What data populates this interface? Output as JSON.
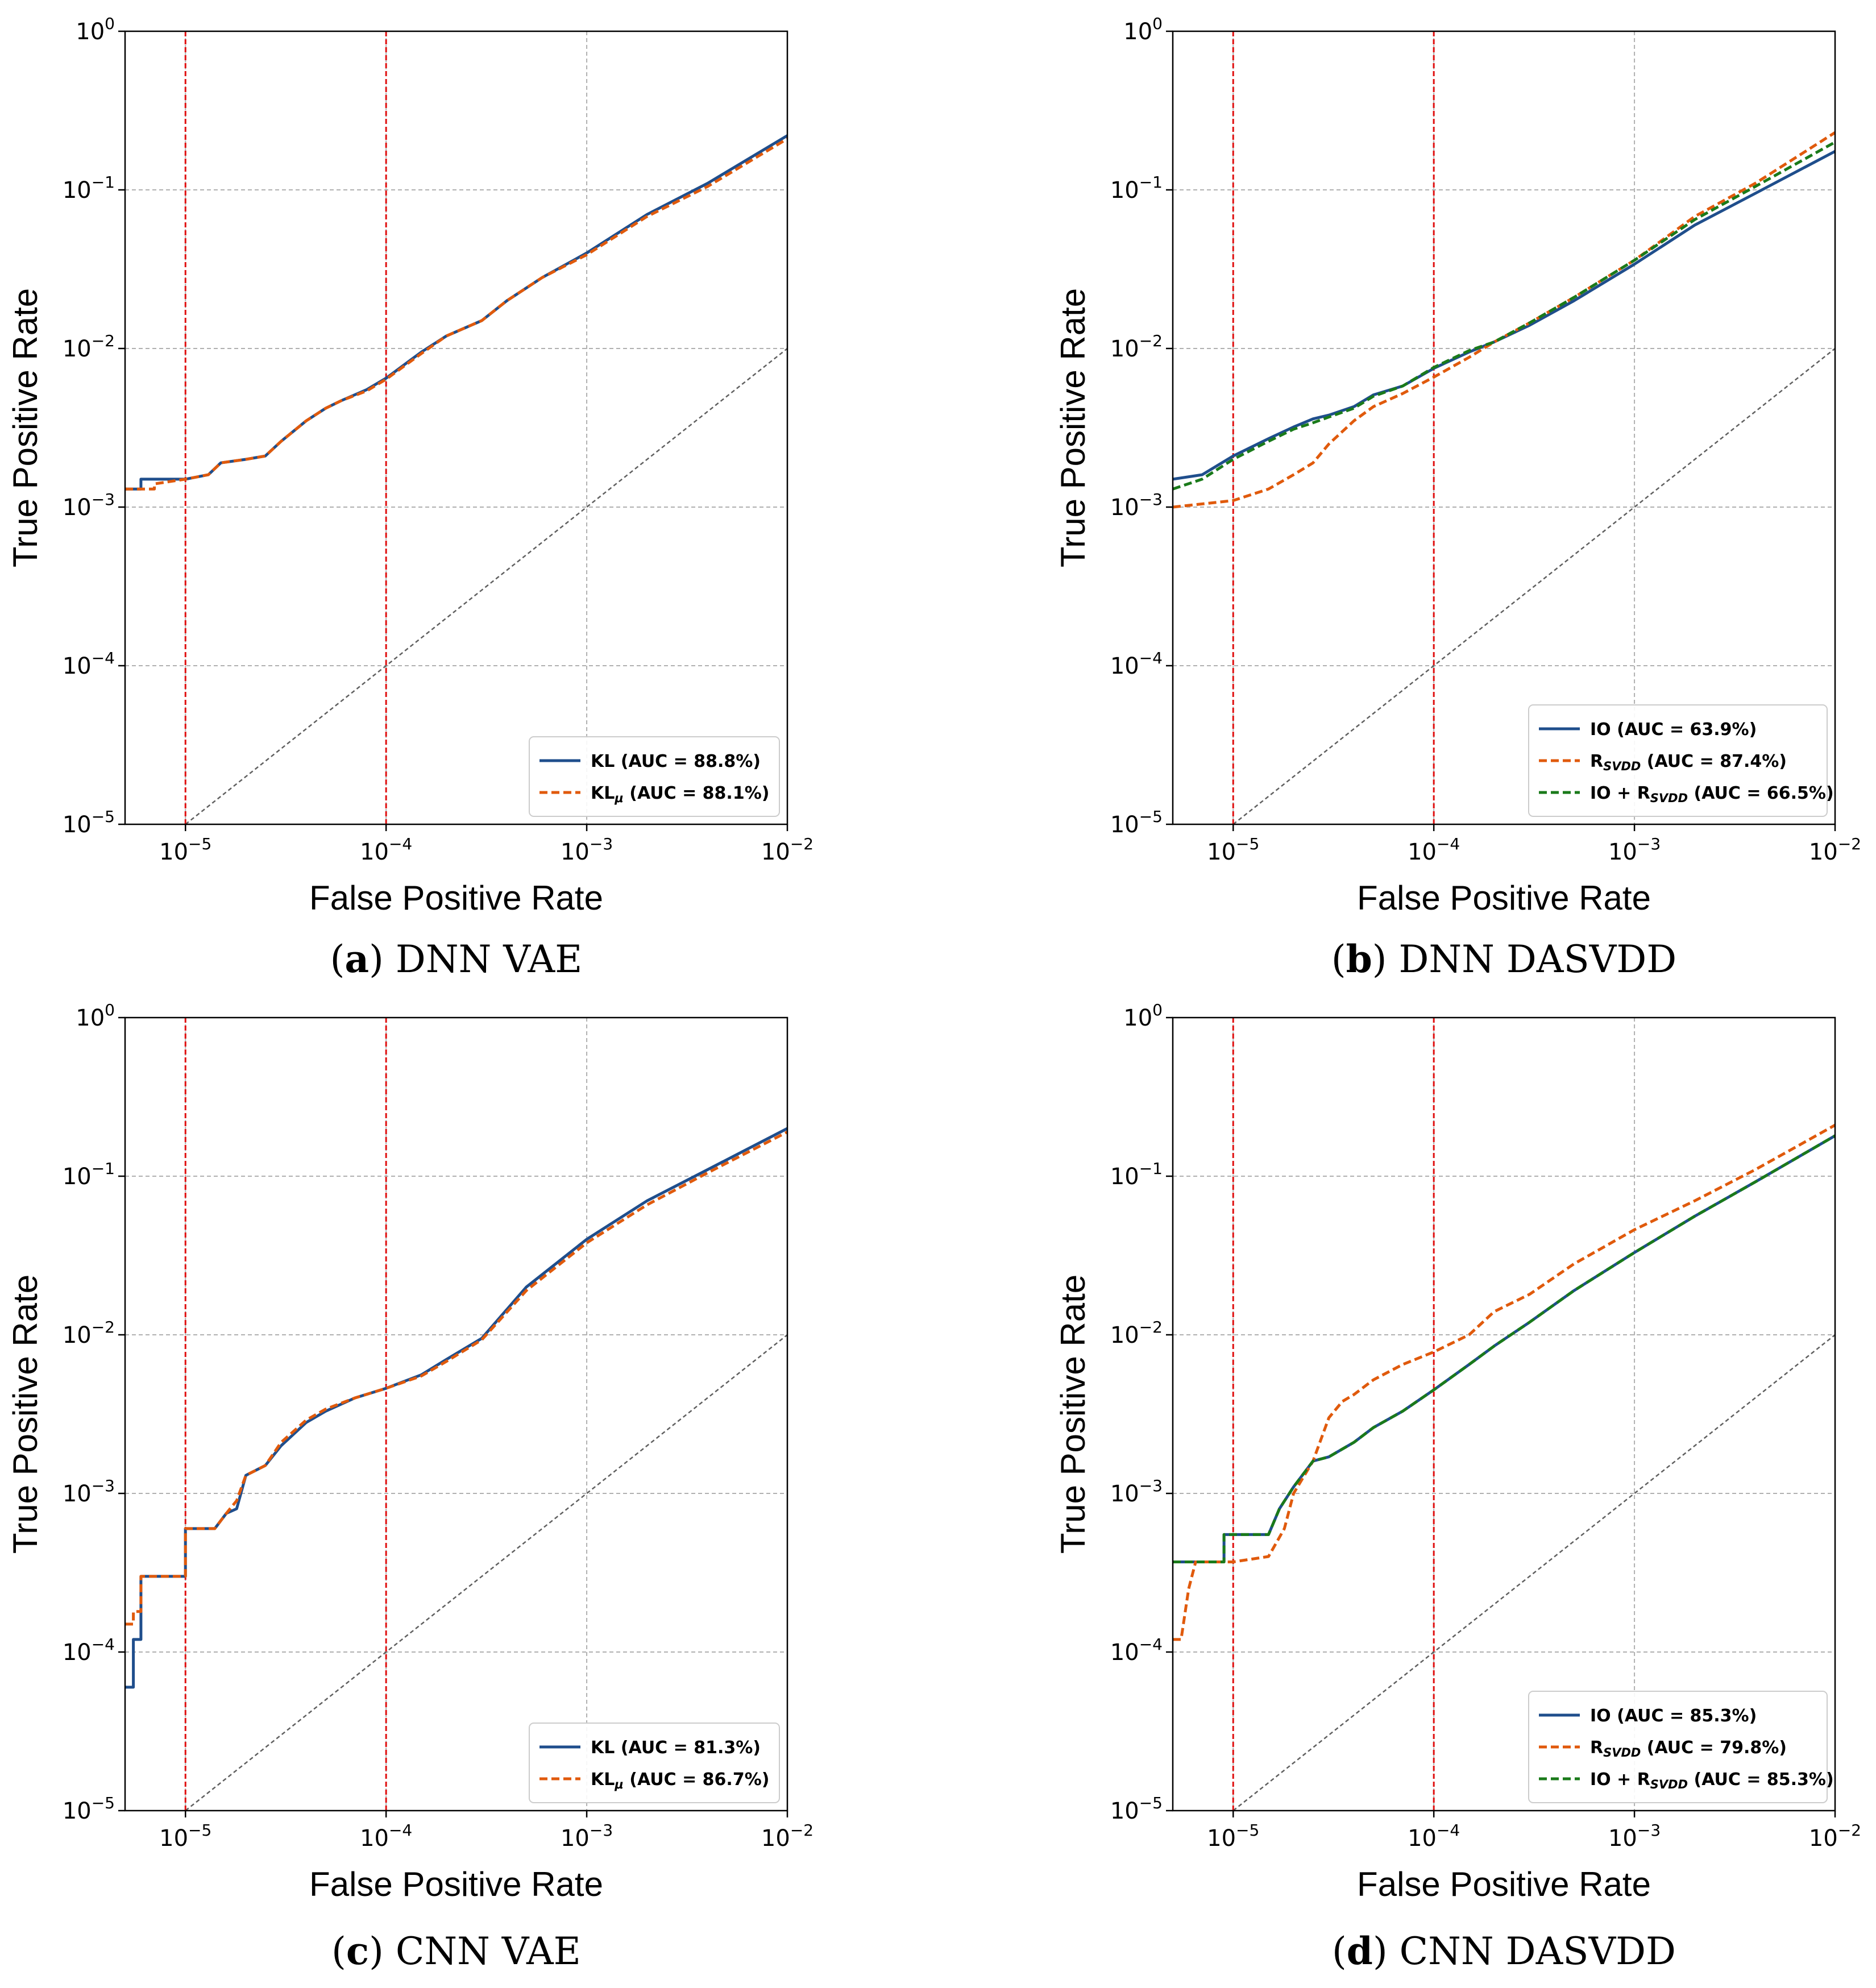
{
  "chart_data": [
    {
      "type": "line",
      "caption_letter": "a",
      "caption_text": "DNN VAE",
      "xlabel": "False Positive Rate",
      "ylabel": "True Positive Rate",
      "xscale": "log",
      "yscale": "log",
      "xlim": [
        5e-06,
        0.01
      ],
      "ylim": [
        1e-05,
        1
      ],
      "grid": true,
      "legend_position": "lower-right",
      "reference_lines": [
        1e-05,
        0.0001
      ],
      "series": [
        {
          "name": "KL (AUC = 88.8%)",
          "label_main": "KL",
          "label_sub": "",
          "label_rest": " (AUC = 88.8%)",
          "color": "#1f4e8c",
          "dash": "solid",
          "x": [
            5e-06,
            6e-06,
            6e-06,
            1e-05,
            1.3e-05,
            1.5e-05,
            2e-05,
            2.5e-05,
            3e-05,
            4e-05,
            5e-05,
            6e-05,
            8e-05,
            0.0001,
            0.00015,
            0.0002,
            0.0003,
            0.0004,
            0.0006,
            0.001,
            0.002,
            0.004,
            0.01
          ],
          "y": [
            0.0013,
            0.0013,
            0.0015,
            0.0015,
            0.0016,
            0.0019,
            0.002,
            0.0021,
            0.0026,
            0.0035,
            0.0042,
            0.0047,
            0.0055,
            0.0065,
            0.0095,
            0.012,
            0.015,
            0.02,
            0.028,
            0.04,
            0.07,
            0.11,
            0.22
          ]
        },
        {
          "name": "KLμ (AUC = 88.1%)",
          "label_main": "KL",
          "label_sub": "μ",
          "label_rest": " (AUC = 88.1%)",
          "color": "#e05a0c",
          "dash": "dashed",
          "x": [
            5e-06,
            7e-06,
            7e-06,
            1e-05,
            1.3e-05,
            1.5e-05,
            2e-05,
            2.5e-05,
            3e-05,
            4e-05,
            5e-05,
            6e-05,
            8e-05,
            0.0001,
            0.00015,
            0.0002,
            0.0003,
            0.0004,
            0.0006,
            0.001,
            0.002,
            0.004,
            0.01
          ],
          "y": [
            0.0013,
            0.0013,
            0.0014,
            0.0015,
            0.0016,
            0.0019,
            0.002,
            0.0021,
            0.0026,
            0.0035,
            0.0042,
            0.0047,
            0.0054,
            0.0064,
            0.0093,
            0.012,
            0.015,
            0.02,
            0.028,
            0.039,
            0.068,
            0.105,
            0.21
          ]
        }
      ]
    },
    {
      "type": "line",
      "caption_letter": "b",
      "caption_text": "DNN DASVDD",
      "xlabel": "False Positive Rate",
      "ylabel": "True Positive Rate",
      "xscale": "log",
      "yscale": "log",
      "xlim": [
        5e-06,
        0.01
      ],
      "ylim": [
        1e-05,
        1
      ],
      "grid": true,
      "legend_position": "lower-right",
      "reference_lines": [
        1e-05,
        0.0001
      ],
      "series": [
        {
          "name": "IO (AUC = 63.9%)",
          "label_main": "IO",
          "label_sub": "",
          "label_rest": " (AUC = 63.9%)",
          "color": "#1f4e8c",
          "dash": "solid",
          "x": [
            5e-06,
            7e-06,
            1e-05,
            1.5e-05,
            2e-05,
            2.5e-05,
            3e-05,
            4e-05,
            5e-05,
            7e-05,
            0.0001,
            0.00015,
            0.0002,
            0.0003,
            0.0005,
            0.001,
            0.002,
            0.004,
            0.01
          ],
          "y": [
            0.0015,
            0.0016,
            0.0021,
            0.0027,
            0.0032,
            0.0036,
            0.0038,
            0.0043,
            0.0051,
            0.0058,
            0.0075,
            0.0095,
            0.011,
            0.014,
            0.02,
            0.034,
            0.06,
            0.095,
            0.175
          ]
        },
        {
          "name": "RSVDD (AUC = 87.4%)",
          "label_main": "R",
          "label_sub": "SVDD",
          "label_rest": " (AUC = 87.4%)",
          "color": "#e05a0c",
          "dash": "dashed",
          "x": [
            5e-06,
            1e-05,
            1.5e-05,
            2e-05,
            2.5e-05,
            3e-05,
            4e-05,
            5e-05,
            7e-05,
            0.0001,
            0.00015,
            0.0002,
            0.0003,
            0.0005,
            0.001,
            0.002,
            0.004,
            0.01
          ],
          "y": [
            0.001,
            0.0011,
            0.0013,
            0.0016,
            0.0019,
            0.0025,
            0.0035,
            0.0043,
            0.0052,
            0.0066,
            0.0088,
            0.011,
            0.0145,
            0.021,
            0.036,
            0.068,
            0.11,
            0.23
          ]
        },
        {
          "name": "IO + RSVDD (AUC = 66.5%)",
          "label_main": "IO + R",
          "label_sub": "SVDD",
          "label_rest": " (AUC = 66.5%)",
          "color": "#1a7a1a",
          "dash": "dashed",
          "x": [
            5e-06,
            7e-06,
            1e-05,
            1.5e-05,
            2e-05,
            2.5e-05,
            3e-05,
            4e-05,
            5e-05,
            7e-05,
            0.0001,
            0.00015,
            0.0002,
            0.0003,
            0.0005,
            0.001,
            0.002,
            0.004,
            0.01
          ],
          "y": [
            0.0013,
            0.0015,
            0.002,
            0.0026,
            0.0031,
            0.0034,
            0.0037,
            0.0042,
            0.005,
            0.0058,
            0.0076,
            0.0097,
            0.011,
            0.0145,
            0.021,
            0.036,
            0.065,
            0.105,
            0.2
          ]
        }
      ]
    },
    {
      "type": "line",
      "caption_letter": "c",
      "caption_text": "CNN VAE",
      "xlabel": "False Positive Rate",
      "ylabel": "True Positive Rate",
      "xscale": "log",
      "yscale": "log",
      "xlim": [
        5e-06,
        0.01
      ],
      "ylim": [
        1e-05,
        1
      ],
      "grid": true,
      "legend_position": "lower-right",
      "reference_lines": [
        1e-05,
        0.0001
      ],
      "series": [
        {
          "name": "KL (AUC = 81.3%)",
          "label_main": "KL",
          "label_sub": "",
          "label_rest": " (AUC = 81.3%)",
          "color": "#1f4e8c",
          "dash": "solid",
          "x": [
            5e-06,
            5.5e-06,
            5.5e-06,
            6e-06,
            6e-06,
            1e-05,
            1e-05,
            1.4e-05,
            1.6e-05,
            1.8e-05,
            2e-05,
            2.5e-05,
            3e-05,
            4e-05,
            5e-05,
            7e-05,
            0.0001,
            0.00015,
            0.0002,
            0.0003,
            0.0005,
            0.001,
            0.002,
            0.004,
            0.01
          ],
          "y": [
            6e-05,
            6e-05,
            0.00012,
            0.00012,
            0.0003,
            0.0003,
            0.0006,
            0.0006,
            0.00075,
            0.0008,
            0.0013,
            0.0015,
            0.002,
            0.0028,
            0.0033,
            0.004,
            0.0046,
            0.0056,
            0.007,
            0.0095,
            0.02,
            0.04,
            0.07,
            0.11,
            0.2
          ]
        },
        {
          "name": "KLμ (AUC = 86.7%)",
          "label_main": "KL",
          "label_sub": "μ",
          "label_rest": " (AUC = 86.7%)",
          "color": "#e05a0c",
          "dash": "dashed",
          "x": [
            5e-06,
            5.5e-06,
            5.5e-06,
            6e-06,
            6e-06,
            1e-05,
            1e-05,
            1.4e-05,
            1.6e-05,
            1.8e-05,
            2e-05,
            2.5e-05,
            3e-05,
            4e-05,
            5e-05,
            7e-05,
            0.0001,
            0.00015,
            0.0002,
            0.0003,
            0.0005,
            0.001,
            0.002,
            0.004,
            0.01
          ],
          "y": [
            0.00015,
            0.00015,
            0.00018,
            0.00018,
            0.0003,
            0.0003,
            0.0006,
            0.0006,
            0.00075,
            0.0009,
            0.0013,
            0.0015,
            0.0021,
            0.0029,
            0.0034,
            0.004,
            0.0046,
            0.0055,
            0.0068,
            0.0093,
            0.019,
            0.038,
            0.066,
            0.105,
            0.19
          ]
        }
      ]
    },
    {
      "type": "line",
      "caption_letter": "d",
      "caption_text": "CNN DASVDD",
      "xlabel": "False Positive Rate",
      "ylabel": "True Positive Rate",
      "xscale": "log",
      "yscale": "log",
      "xlim": [
        5e-06,
        0.01
      ],
      "ylim": [
        1e-05,
        1
      ],
      "grid": true,
      "legend_position": "lower-right",
      "reference_lines": [
        1e-05,
        0.0001
      ],
      "series": [
        {
          "name": "IO (AUC = 85.3%)",
          "label_main": "IO",
          "label_sub": "",
          "label_rest": " (AUC = 85.3%)",
          "color": "#1f4e8c",
          "dash": "solid",
          "x": [
            5e-06,
            9e-06,
            9e-06,
            1.5e-05,
            1.7e-05,
            2e-05,
            2.5e-05,
            3e-05,
            4e-05,
            5e-05,
            7e-05,
            0.0001,
            0.00015,
            0.0002,
            0.0003,
            0.0005,
            0.001,
            0.002,
            0.004,
            0.01
          ],
          "y": [
            0.00037,
            0.00037,
            0.00055,
            0.00055,
            0.0008,
            0.0011,
            0.0016,
            0.0017,
            0.0021,
            0.0026,
            0.0033,
            0.0045,
            0.0065,
            0.0085,
            0.012,
            0.019,
            0.033,
            0.056,
            0.092,
            0.18
          ]
        },
        {
          "name": "RSVDD (AUC = 79.8%)",
          "label_main": "R",
          "label_sub": "SVDD",
          "label_rest": " (AUC = 79.8%)",
          "color": "#e05a0c",
          "dash": "dashed",
          "x": [
            5e-06,
            5.5e-06,
            6e-06,
            6.5e-06,
            1e-05,
            1.5e-05,
            1.8e-05,
            2e-05,
            2.5e-05,
            3e-05,
            3.5e-05,
            4e-05,
            5e-05,
            7e-05,
            0.0001,
            0.00015,
            0.0002,
            0.0003,
            0.0005,
            0.001,
            0.002,
            0.004,
            0.01
          ],
          "y": [
            0.00012,
            0.00012,
            0.00025,
            0.00037,
            0.00037,
            0.0004,
            0.0006,
            0.001,
            0.0016,
            0.003,
            0.0038,
            0.0042,
            0.0052,
            0.0065,
            0.0078,
            0.01,
            0.014,
            0.018,
            0.028,
            0.046,
            0.07,
            0.11,
            0.21
          ]
        },
        {
          "name": "IO + RSVDD (AUC = 85.3%)",
          "label_main": "IO + R",
          "label_sub": "SVDD",
          "label_rest": " (AUC = 85.3%)",
          "color": "#1a7a1a",
          "dash": "dashed",
          "x": [
            5e-06,
            9e-06,
            9e-06,
            1.5e-05,
            1.7e-05,
            2e-05,
            2.5e-05,
            3e-05,
            4e-05,
            5e-05,
            7e-05,
            0.0001,
            0.00015,
            0.0002,
            0.0003,
            0.0005,
            0.001,
            0.002,
            0.004,
            0.01
          ],
          "y": [
            0.00037,
            0.00037,
            0.00055,
            0.00055,
            0.0008,
            0.0011,
            0.0016,
            0.0017,
            0.0021,
            0.0026,
            0.0033,
            0.0045,
            0.0065,
            0.0085,
            0.012,
            0.019,
            0.033,
            0.056,
            0.092,
            0.18
          ]
        }
      ]
    }
  ]
}
